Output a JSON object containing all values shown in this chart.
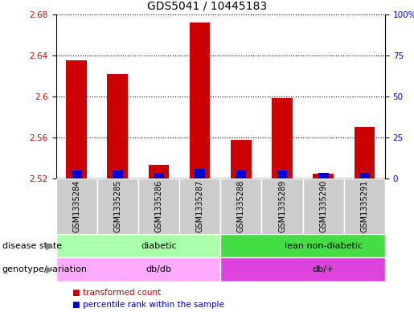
{
  "title": "GDS5041 / 10445183",
  "samples": [
    "GSM1335284",
    "GSM1335285",
    "GSM1335286",
    "GSM1335287",
    "GSM1335288",
    "GSM1335289",
    "GSM1335290",
    "GSM1335291"
  ],
  "transformed_counts": [
    2.635,
    2.622,
    2.533,
    2.672,
    2.558,
    2.598,
    2.525,
    2.57
  ],
  "percentile_ranks": [
    8,
    8,
    5,
    10,
    8,
    8,
    6,
    6
  ],
  "ymin": 2.52,
  "ymax": 2.68,
  "yticks": [
    2.52,
    2.56,
    2.6,
    2.64,
    2.68
  ],
  "ytick_labels": [
    "2.52",
    "2.56",
    "2.6",
    "2.64",
    "2.68"
  ],
  "y2min": 0,
  "y2max": 100,
  "y2ticks": [
    0,
    25,
    50,
    75,
    100
  ],
  "y2tick_labels": [
    "0",
    "25",
    "50",
    "75",
    "100%"
  ],
  "bar_bottom": 2.52,
  "red_color": "#cc0000",
  "blue_color": "#0000cc",
  "disease_state_groups": [
    {
      "label": "diabetic",
      "start": 0,
      "end": 4,
      "color": "#aaffaa"
    },
    {
      "label": "lean non-diabetic",
      "start": 4,
      "end": 8,
      "color": "#44dd44"
    }
  ],
  "genotype_groups": [
    {
      "label": "db/db",
      "start": 0,
      "end": 4,
      "color": "#ffaaff"
    },
    {
      "label": "db/+",
      "start": 4,
      "end": 8,
      "color": "#dd44dd"
    }
  ],
  "legend_items": [
    {
      "color": "#cc0000",
      "label": "transformed count"
    },
    {
      "color": "#0000cc",
      "label": "percentile rank within the sample"
    }
  ],
  "title_fontsize": 10,
  "tick_fontsize": 7.5,
  "label_fontsize": 8,
  "sample_fontsize": 7,
  "legend_fontsize": 7.5,
  "grey_cell_color": "#cccccc",
  "white": "#ffffff",
  "chart_bg": "#ffffff"
}
